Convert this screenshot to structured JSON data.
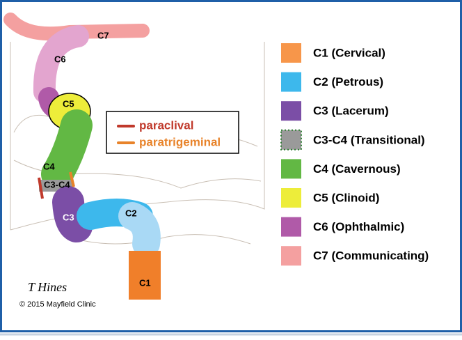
{
  "illustration": {
    "segment_labels": [
      "C7",
      "C6",
      "C5",
      "C4",
      "C3-C4",
      "C3",
      "C2",
      "C1"
    ],
    "inset_legend": [
      {
        "label": "paraclival",
        "color": "#c0392b"
      },
      {
        "label": "paratrigeminal",
        "color": "#e8832a"
      }
    ],
    "signature": "T Hines",
    "copyright": "© 2015 Mayfield Clinic"
  },
  "legend": [
    {
      "label": "C1 (Cervical)",
      "color": "#f7964a"
    },
    {
      "label": "C2 (Petrous)",
      "color": "#3db8ec"
    },
    {
      "label": "C3 (Lacerum)",
      "color": "#7b4ea6"
    },
    {
      "label": "C3-C4 (Transitional)",
      "color": "#9a9a9a"
    },
    {
      "label": "C4 (Cavernous)",
      "color": "#62b844"
    },
    {
      "label": "C5 (Clinoid)",
      "color": "#eded3a"
    },
    {
      "label": "C6 (Ophthalmic)",
      "color": "#b05aa8"
    },
    {
      "label": "C7 (Communicating)",
      "color": "#f4a0a0"
    }
  ]
}
